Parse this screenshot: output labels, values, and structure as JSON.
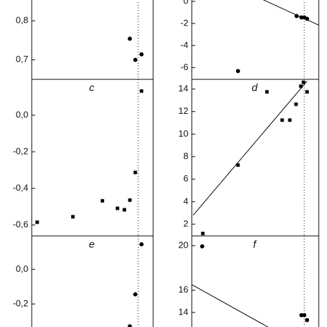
{
  "chart_data": [
    {
      "type": "scatter",
      "xlim": [
        0,
        100
      ],
      "ylim": [
        0.65,
        0.855
      ],
      "yticks": [
        {
          "value": 0.7,
          "label": "0,7"
        },
        {
          "value": 0.8,
          "label": "0,8"
        }
      ],
      "vline": 87.6,
      "series": [
        {
          "color": "#000",
          "marker": "circle",
          "x": [
            80.8,
            85.3,
            90.4
          ],
          "values": [
            0.754,
            0.7,
            0.714
          ]
        }
      ]
    },
    {
      "type": "scatter",
      "xlim": [
        0,
        100
      ],
      "ylim": [
        -7.07,
        0.19
      ],
      "yticks": [
        -6,
        -4,
        -2,
        0
      ],
      "vline": 88.6,
      "series": [
        {
          "color": "#000",
          "marker": "circle",
          "x": [
            36.4,
            82.6,
            86.4,
            88.6,
            90.8
          ],
          "values": [
            -6.32,
            -1.33,
            -1.45,
            -1.45,
            -1.58
          ]
        },
        {
          "color": "#000",
          "marker": "line",
          "x": [
            55.4,
            100
          ],
          "values": [
            0.19,
            -2.15
          ]
        }
      ]
    },
    {
      "type": "scatter",
      "label": "c",
      "xlim": [
        0,
        100
      ],
      "ylim": [
        -0.66,
        0.196
      ],
      "yticks": [
        {
          "value": -0.6,
          "label": "-0,6"
        },
        {
          "value": -0.4,
          "label": "-0,4"
        },
        {
          "value": -0.2,
          "label": "-0,2"
        },
        {
          "value": 0,
          "label": "0,0"
        }
      ],
      "vline": 87.6,
      "series": [
        {
          "color": "#000",
          "marker": "square",
          "x": [
            4.5,
            33.9,
            58.2,
            70.6,
            76.3,
            80.8,
            85.3,
            90.4
          ],
          "values": [
            -0.585,
            -0.555,
            -0.468,
            -0.509,
            -0.517,
            -0.464,
            -0.313,
            0.132
          ]
        }
      ]
    },
    {
      "type": "scatter",
      "label": "d",
      "xlim": [
        0,
        100
      ],
      "ylim": [
        0.96,
        14.86
      ],
      "yticks": [
        2,
        4,
        6,
        8,
        10,
        12,
        14
      ],
      "vline": 88.6,
      "series": [
        {
          "color": "#000",
          "marker": "square",
          "x": [
            8.7,
            36.4,
            59.2,
            71.2,
            77.2,
            82.1,
            85.9,
            88.0,
            90.8
          ],
          "values": [
            1.18,
            7.25,
            13.75,
            11.24,
            11.24,
            12.65,
            14.25,
            14.6,
            13.75
          ]
        },
        {
          "color": "#000",
          "marker": "line",
          "x": [
            1.1,
            90.8
          ],
          "values": [
            2.8,
            14.7
          ]
        }
      ]
    },
    {
      "type": "scatter",
      "label": "e",
      "xlim": [
        0,
        100
      ],
      "ylim": [
        -0.336,
        0.192
      ],
      "yticks": [
        {
          "value": -0.2,
          "label": "-0,2"
        },
        {
          "value": 0,
          "label": "0,0"
        }
      ],
      "vline": 87.6,
      "series": [
        {
          "color": "#000",
          "marker": "circle",
          "x": [
            90.4,
            85.3,
            80.8
          ],
          "values": [
            0.144,
            -0.144,
            -0.328
          ]
        }
      ]
    },
    {
      "type": "scatter",
      "label": "f",
      "xlim": [
        0,
        100
      ],
      "ylim": [
        12.625,
        20.875
      ],
      "yticks": [
        14,
        16,
        20
      ],
      "vline": 88.6,
      "series": [
        {
          "color": "#000",
          "marker": "circle",
          "x": [
            8.2,
            86.4,
            88.6,
            90.8
          ],
          "values": [
            19.94,
            13.75,
            13.75,
            13.31
          ]
        },
        {
          "color": "#000",
          "marker": "line",
          "x": [
            0,
            60.9
          ],
          "values": [
            16.5,
            12.625
          ]
        }
      ]
    }
  ]
}
